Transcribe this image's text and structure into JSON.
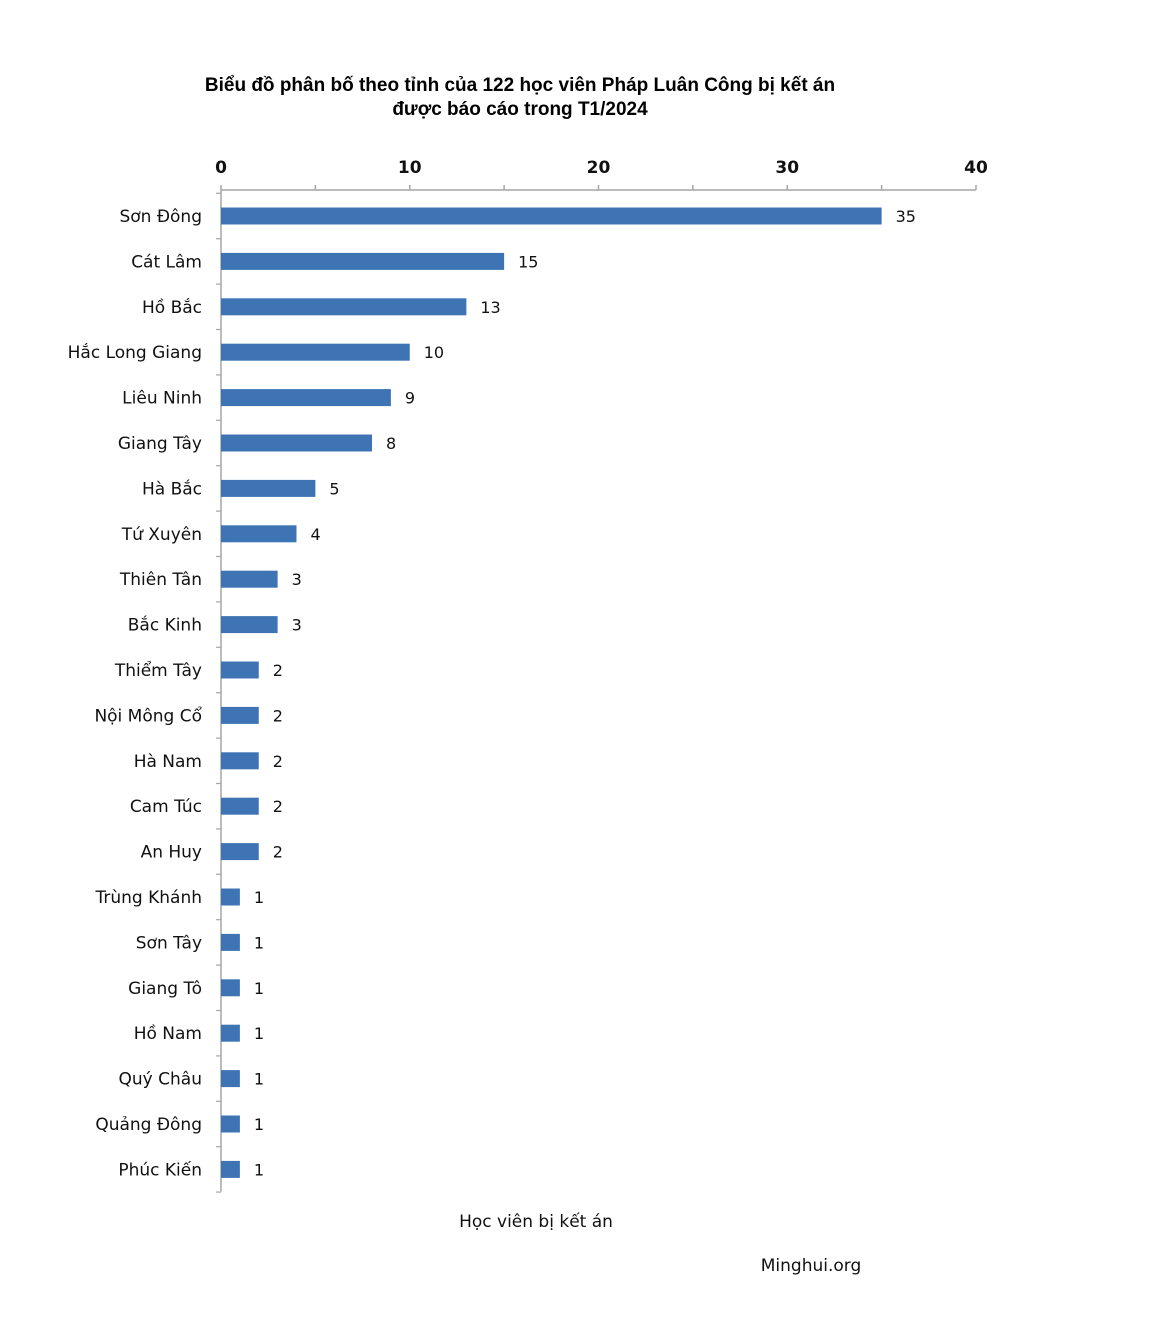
{
  "chart_data": {
    "type": "bar",
    "orientation": "horizontal",
    "title_lines": [
      "Biểu đồ phân bố theo tỉnh của 122 học viên Pháp Luân Công bị kết án",
      "được báo cáo trong T1/2024"
    ],
    "categories": [
      "Sơn Đông",
      "Cát Lâm",
      "Hồ Bắc",
      "Hắc Long Giang",
      "Liêu Ninh",
      "Giang Tây",
      "Hà Bắc",
      "Tứ Xuyên",
      "Thiên Tân",
      "Bắc Kinh",
      "Thiểm Tây",
      "Nội Mông Cổ",
      "Hà Nam",
      "Cam Túc",
      "An Huy",
      "Trùng Khánh",
      "Sơn Tây",
      "Giang Tô",
      "Hồ Nam",
      "Quý Châu",
      "Quảng Đông",
      "Phúc Kiến"
    ],
    "values": [
      35,
      15,
      13,
      10,
      9,
      8,
      5,
      4,
      3,
      3,
      2,
      2,
      2,
      2,
      2,
      1,
      1,
      1,
      1,
      1,
      1,
      1
    ],
    "xlabel": "Học viên bị kết án",
    "xlim": [
      0,
      40
    ],
    "xticks": [
      0,
      10,
      20,
      30,
      40
    ],
    "axis_position": "top",
    "grid": false,
    "bar_color": "#3f74b4",
    "axis_color": "#a6a6a6"
  },
  "source": "Minghui.org"
}
